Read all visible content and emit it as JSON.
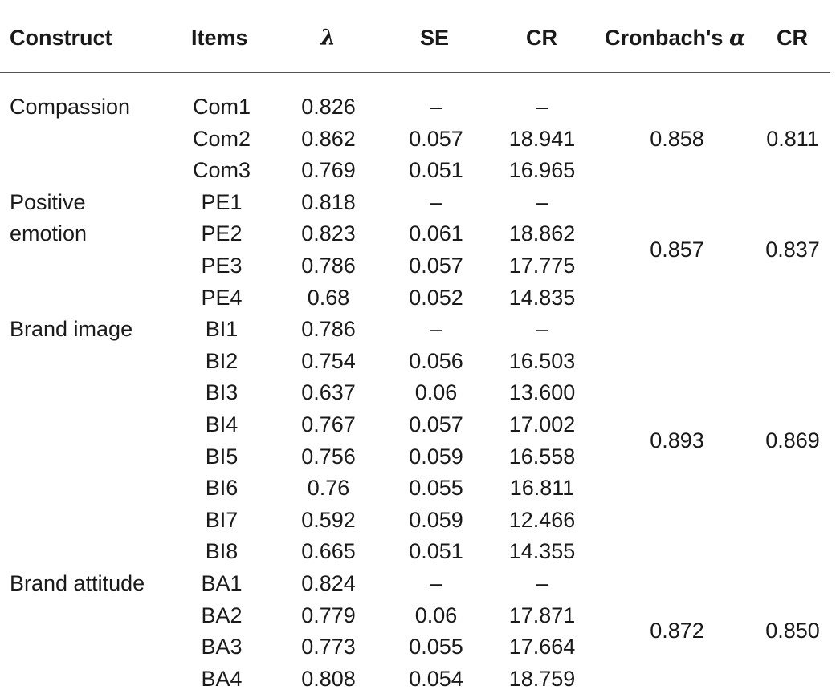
{
  "table": {
    "headers": {
      "construct": "Construct",
      "items": "Items",
      "lambda": "λ",
      "se": "SE",
      "cr": "CR",
      "cronbach": "Cronbach's",
      "alpha": "α",
      "cr2": "CR"
    },
    "groups": [
      {
        "construct": [
          "Compassion"
        ],
        "cronbach": "0.858",
        "cr": "0.811",
        "rows": [
          {
            "item": "Com1",
            "lambda": "0.826",
            "se": "–",
            "cr": "–"
          },
          {
            "item": "Com2",
            "lambda": "0.862",
            "se": "0.057",
            "cr": "18.941"
          },
          {
            "item": "Com3",
            "lambda": "0.769",
            "se": "0.051",
            "cr": "16.965"
          }
        ]
      },
      {
        "construct": [
          "Positive",
          "emotion"
        ],
        "cronbach": "0.857",
        "cr": "0.837",
        "rows": [
          {
            "item": "PE1",
            "lambda": "0.818",
            "se": "–",
            "cr": "–"
          },
          {
            "item": "PE2",
            "lambda": "0.823",
            "se": "0.061",
            "cr": "18.862"
          },
          {
            "item": "PE3",
            "lambda": "0.786",
            "se": "0.057",
            "cr": "17.775"
          },
          {
            "item": "PE4",
            "lambda": "0.68",
            "se": "0.052",
            "cr": "14.835"
          }
        ]
      },
      {
        "construct": [
          "Brand image"
        ],
        "cronbach": "0.893",
        "cr": "0.869",
        "rows": [
          {
            "item": "BI1",
            "lambda": "0.786",
            "se": "–",
            "cr": "–"
          },
          {
            "item": "BI2",
            "lambda": "0.754",
            "se": "0.056",
            "cr": "16.503"
          },
          {
            "item": "BI3",
            "lambda": "0.637",
            "se": "0.06",
            "cr": "13.600"
          },
          {
            "item": "BI4",
            "lambda": "0.767",
            "se": "0.057",
            "cr": "17.002"
          },
          {
            "item": "BI5",
            "lambda": "0.756",
            "se": "0.059",
            "cr": "16.558"
          },
          {
            "item": "BI6",
            "lambda": "0.76",
            "se": "0.055",
            "cr": "16.811"
          },
          {
            "item": "BI7",
            "lambda": "0.592",
            "se": "0.059",
            "cr": "12.466"
          },
          {
            "item": "BI8",
            "lambda": "0.665",
            "se": "0.051",
            "cr": "14.355"
          }
        ]
      },
      {
        "construct": [
          "Brand attitude"
        ],
        "cronbach": "0.872",
        "cr": "0.850",
        "rows": [
          {
            "item": "BA1",
            "lambda": "0.824",
            "se": "–",
            "cr": "–"
          },
          {
            "item": "BA2",
            "lambda": "0.779",
            "se": "0.06",
            "cr": "17.871"
          },
          {
            "item": "BA3",
            "lambda": "0.773",
            "se": "0.055",
            "cr": "17.664"
          },
          {
            "item": "BA4",
            "lambda": "0.808",
            "se": "0.054",
            "cr": "18.759"
          }
        ]
      }
    ]
  }
}
